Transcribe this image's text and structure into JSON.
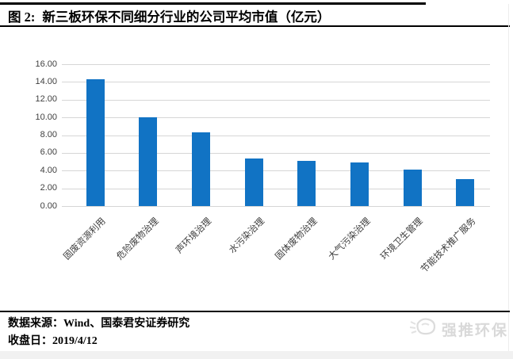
{
  "header": {
    "figure_label": "图 2:",
    "title": "新三板环保不同细分行业的公司平均市值（亿元）"
  },
  "chart_data": {
    "type": "bar",
    "title": "新三板环保不同细分行业的公司平均市值（亿元）",
    "categories": [
      "固废资源利用",
      "危险废物治理",
      "声环境治理",
      "水污染治理",
      "固体废物治理",
      "大气污染治理",
      "环境卫生管理",
      "节能技术推广服务"
    ],
    "values": [
      14.3,
      10.0,
      8.3,
      5.4,
      5.1,
      4.9,
      4.1,
      3.0
    ],
    "xlabel": "",
    "ylabel": "",
    "ylim": [
      0,
      16
    ],
    "ytick_step": 2,
    "ytick_labels": [
      "0.00",
      "2.00",
      "4.00",
      "6.00",
      "8.00",
      "10.00",
      "12.00",
      "14.00",
      "16.00"
    ],
    "grid": true,
    "legend": null,
    "bar_color": "#1173c4",
    "gridline_color": "#d6d6d6",
    "axis_label_color": "#404040"
  },
  "footer": {
    "source_label": "数据来源：",
    "source_value": "Wind、国泰君安证券研究",
    "close_date_label": "收盘日：",
    "close_date_value": "2019/4/12"
  },
  "watermark": {
    "icon": "fist-icon",
    "text": "强推环保"
  }
}
